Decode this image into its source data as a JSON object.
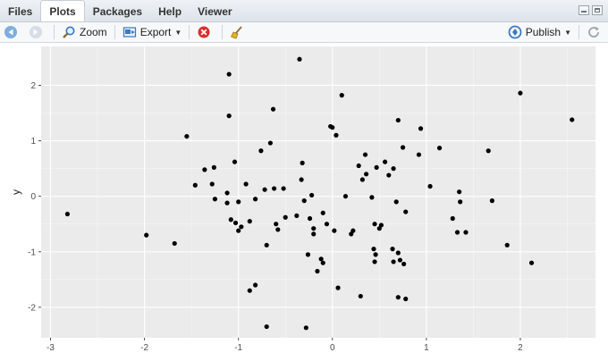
{
  "tabs": [
    {
      "label": "Files",
      "active": false
    },
    {
      "label": "Plots",
      "active": true
    },
    {
      "label": "Packages",
      "active": false
    },
    {
      "label": "Help",
      "active": false
    },
    {
      "label": "Viewer",
      "active": false
    }
  ],
  "toolbar": {
    "back_icon": "arrow-left-icon",
    "forward_icon": "arrow-right-icon",
    "zoom_label": "Zoom",
    "zoom_icon": "zoom-icon",
    "export_label": "Export",
    "export_icon": "export-icon",
    "remove_icon": "remove-plot-icon",
    "clear_icon": "broom-icon",
    "publish_label": "Publish",
    "publish_icon": "publish-icon",
    "refresh_icon": "refresh-icon"
  },
  "colors": {
    "panel_background": "#ebebeb",
    "grid_major": "#ffffff",
    "point": "#000000",
    "accent_blue": "#3a78c3"
  },
  "chart_data": {
    "type": "scatter",
    "xlabel": "",
    "ylabel": "y",
    "xlim": [
      -3.1,
      2.8
    ],
    "ylim": [
      -2.55,
      2.7
    ],
    "x_ticks": [
      -3,
      -2,
      -1,
      0,
      1,
      2
    ],
    "x_tick_labels": [
      "-3",
      "-2",
      "-1",
      "0",
      "1",
      "2"
    ],
    "y_ticks": [
      -2,
      -1,
      0,
      1,
      2
    ],
    "y_tick_labels": [
      "-2",
      "-1",
      "0",
      "1",
      "2"
    ],
    "grid": true,
    "points": [
      {
        "x": -2.82,
        "y": -0.32
      },
      {
        "x": -1.98,
        "y": -0.7
      },
      {
        "x": -1.68,
        "y": -0.85
      },
      {
        "x": -1.55,
        "y": 1.08
      },
      {
        "x": -1.46,
        "y": 0.2
      },
      {
        "x": -1.36,
        "y": 0.48
      },
      {
        "x": -1.28,
        "y": 0.22
      },
      {
        "x": -1.26,
        "y": 0.52
      },
      {
        "x": -1.25,
        "y": -0.05
      },
      {
        "x": -1.12,
        "y": 0.06
      },
      {
        "x": -1.12,
        "y": -0.12
      },
      {
        "x": -1.1,
        "y": 2.2
      },
      {
        "x": -1.1,
        "y": 1.45
      },
      {
        "x": -1.08,
        "y": -0.42
      },
      {
        "x": -1.04,
        "y": 0.62
      },
      {
        "x": -1.03,
        "y": -0.48
      },
      {
        "x": -1.0,
        "y": -0.1
      },
      {
        "x": -1.0,
        "y": -0.62
      },
      {
        "x": -0.97,
        "y": -0.55
      },
      {
        "x": -0.92,
        "y": 0.22
      },
      {
        "x": -0.88,
        "y": -0.45
      },
      {
        "x": -0.88,
        "y": -1.7
      },
      {
        "x": -0.82,
        "y": -0.05
      },
      {
        "x": -0.82,
        "y": -1.6
      },
      {
        "x": -0.76,
        "y": 0.82
      },
      {
        "x": -0.72,
        "y": 0.12
      },
      {
        "x": -0.7,
        "y": -0.88
      },
      {
        "x": -0.7,
        "y": -2.35
      },
      {
        "x": -0.66,
        "y": 0.96
      },
      {
        "x": -0.63,
        "y": 1.57
      },
      {
        "x": -0.62,
        "y": 0.14
      },
      {
        "x": -0.6,
        "y": -0.5
      },
      {
        "x": -0.58,
        "y": -0.6
      },
      {
        "x": -0.52,
        "y": 0.14
      },
      {
        "x": -0.5,
        "y": -0.38
      },
      {
        "x": -0.38,
        "y": -0.35
      },
      {
        "x": -0.35,
        "y": 2.47
      },
      {
        "x": -0.33,
        "y": 0.3
      },
      {
        "x": -0.32,
        "y": 0.6
      },
      {
        "x": -0.3,
        "y": -0.08
      },
      {
        "x": -0.28,
        "y": -2.37
      },
      {
        "x": -0.26,
        "y": -1.05
      },
      {
        "x": -0.24,
        "y": -0.4
      },
      {
        "x": -0.22,
        "y": 0.02
      },
      {
        "x": -0.2,
        "y": -0.58
      },
      {
        "x": -0.2,
        "y": -0.68
      },
      {
        "x": -0.16,
        "y": -1.35
      },
      {
        "x": -0.12,
        "y": -1.13
      },
      {
        "x": -0.1,
        "y": -1.2
      },
      {
        "x": -0.1,
        "y": -0.3
      },
      {
        "x": -0.06,
        "y": -0.5
      },
      {
        "x": -0.02,
        "y": 1.26
      },
      {
        "x": 0.0,
        "y": 1.24
      },
      {
        "x": 0.02,
        "y": -0.62
      },
      {
        "x": 0.04,
        "y": 1.1
      },
      {
        "x": 0.06,
        "y": -1.65
      },
      {
        "x": 0.1,
        "y": 1.82
      },
      {
        "x": 0.14,
        "y": 0.0
      },
      {
        "x": 0.2,
        "y": -0.68
      },
      {
        "x": 0.22,
        "y": -0.62
      },
      {
        "x": 0.28,
        "y": 0.55
      },
      {
        "x": 0.3,
        "y": -1.8
      },
      {
        "x": 0.32,
        "y": 0.3
      },
      {
        "x": 0.35,
        "y": 0.75
      },
      {
        "x": 0.36,
        "y": 0.4
      },
      {
        "x": 0.42,
        "y": -0.02
      },
      {
        "x": 0.44,
        "y": -0.95
      },
      {
        "x": 0.45,
        "y": -0.5
      },
      {
        "x": 0.45,
        "y": -1.18
      },
      {
        "x": 0.46,
        "y": -1.05
      },
      {
        "x": 0.47,
        "y": 0.52
      },
      {
        "x": 0.5,
        "y": -0.58
      },
      {
        "x": 0.52,
        "y": -0.52
      },
      {
        "x": 0.56,
        "y": 0.62
      },
      {
        "x": 0.6,
        "y": 0.38
      },
      {
        "x": 0.64,
        "y": -0.95
      },
      {
        "x": 0.65,
        "y": 0.5
      },
      {
        "x": 0.65,
        "y": -1.18
      },
      {
        "x": 0.68,
        "y": -0.1
      },
      {
        "x": 0.7,
        "y": 1.37
      },
      {
        "x": 0.7,
        "y": -1.02
      },
      {
        "x": 0.7,
        "y": -1.82
      },
      {
        "x": 0.72,
        "y": -1.15
      },
      {
        "x": 0.75,
        "y": 0.88
      },
      {
        "x": 0.76,
        "y": -1.22
      },
      {
        "x": 0.78,
        "y": -0.28
      },
      {
        "x": 0.78,
        "y": -1.85
      },
      {
        "x": 0.92,
        "y": 0.75
      },
      {
        "x": 0.94,
        "y": 1.22
      },
      {
        "x": 1.04,
        "y": 0.18
      },
      {
        "x": 1.14,
        "y": 0.87
      },
      {
        "x": 1.28,
        "y": -0.4
      },
      {
        "x": 1.33,
        "y": -0.65
      },
      {
        "x": 1.35,
        "y": 0.08
      },
      {
        "x": 1.36,
        "y": -0.1
      },
      {
        "x": 1.42,
        "y": -0.65
      },
      {
        "x": 1.66,
        "y": 0.82
      },
      {
        "x": 1.7,
        "y": -0.08
      },
      {
        "x": 1.86,
        "y": -0.88
      },
      {
        "x": 2.0,
        "y": 1.86
      },
      {
        "x": 2.12,
        "y": -1.2
      },
      {
        "x": 2.55,
        "y": 1.38
      }
    ]
  }
}
